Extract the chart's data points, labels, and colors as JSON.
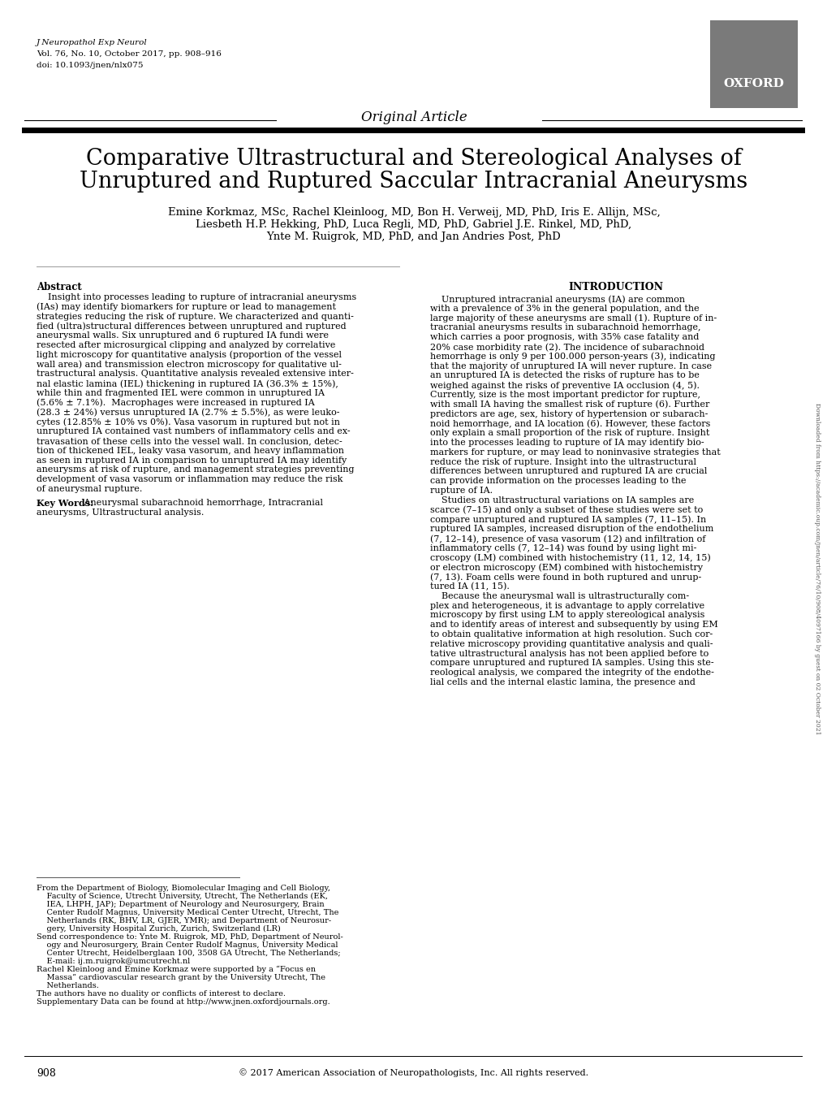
{
  "journal_line1": "J Neuropathol Exp Neurol",
  "journal_line2": "Vol. 76, No. 10, October 2017, pp. 908–916",
  "journal_line3": "doi: 10.1093/jnen/nlx075",
  "oxford_box_color": "#7a7a7a",
  "oxford_text": "OXFORD",
  "section_label": "Original Article",
  "title_line1": "Comparative Ultrastructural and Stereological Analyses of",
  "title_line2": "Unruptured and Ruptured Saccular Intracranial Aneurysms",
  "authors_line1": "Emine Korkmaz, MSc, Rachel Kleinloog, MD, Bon H. Verweij, MD, PhD, Iris E. Allijn, MSc,",
  "authors_line2": "Liesbeth H.P. Hekking, PhD, Luca Regli, MD, PhD, Gabriel J.E. Rinkel, MD, PhD,",
  "authors_line3": "Ynte M. Ruigrok, MD, PhD, and Jan Andries Post, PhD",
  "abstract_title": "Abstract",
  "abstract_lines": [
    "    Insight into processes leading to rupture of intracranial aneurysms",
    "(IAs) may identify biomarkers for rupture or lead to management",
    "strategies reducing the risk of rupture. We characterized and quanti-",
    "fied (ultra)structural differences between unruptured and ruptured",
    "aneurysmal walls. Six unruptured and 6 ruptured IA fundi were",
    "resected after microsurgical clipping and analyzed by correlative",
    "light microscopy for quantitative analysis (proportion of the vessel",
    "wall area) and transmission electron microscopy for qualitative ul-",
    "trastructural analysis. Quantitative analysis revealed extensive inter-",
    "nal elastic lamina (IEL) thickening in ruptured IA (36.3% ± 15%),",
    "while thin and fragmented IEL were common in unruptured IA",
    "(5.6% ± 7.1%).  Macrophages were increased in ruptured IA",
    "(28.3 ± 24%) versus unruptured IA (2.7% ± 5.5%), as were leuko-",
    "cytes (12.85% ± 10% vs 0%). Vasa vasorum in ruptured but not in",
    "unruptured IA contained vast numbers of inflammatory cells and ex-",
    "travasation of these cells into the vessel wall. In conclusion, detec-",
    "tion of thickened IEL, leaky vasa vasorum, and heavy inflammation",
    "as seen in ruptured IA in comparison to unruptured IA may identify",
    "aneurysms at risk of rupture, and management strategies preventing",
    "development of vasa vasorum or inflammation may reduce the risk",
    "of aneurysmal rupture."
  ],
  "keywords_label": "Key Words:",
  "keywords_lines": [
    " Aneurysmal subarachnoid hemorrhage, Intracranial",
    "aneurysms, Ultrastructural analysis."
  ],
  "footnote_lines": [
    "From the Department of Biology, Biomolecular Imaging and Cell Biology,",
    "    Faculty of Science, Utrecht University, Utrecht, The Netherlands (EK,",
    "    IEA, LHPH, JAP); Department of Neurology and Neurosurgery, Brain",
    "    Center Rudolf Magnus, University Medical Center Utrecht, Utrecht, The",
    "    Netherlands (RK, BHV, LR, GJER, YMR); and Department of Neurosur-",
    "    gery, University Hospital Zurich, Zurich, Switzerland (LR)",
    "Send correspondence to: Ynte M. Ruigrok, MD, PhD, Department of Neurol-",
    "    ogy and Neurosurgery, Brain Center Rudolf Magnus, University Medical",
    "    Center Utrecht, Heidelberglaan 100, 3508 GA Utrecht, The Netherlands;",
    "    E-mail: ij.m.ruigrok@umcutrecht.nl",
    "Rachel Kleinloog and Emine Korkmaz were supported by a “Focus en",
    "    Massa” cardiovascular research grant by the University Utrecht, The",
    "    Netherlands.",
    "The authors have no duality or conflicts of interest to declare.",
    "Supplementary Data can be found at http://www.jnen.oxfordjournals.org."
  ],
  "page_number": "908",
  "copyright": "© 2017 American Association of Neuropathologists, Inc. All rights reserved.",
  "intro_title": "INTRODUCTION",
  "intro_lines": [
    "    Unruptured intracranial aneurysms (IA) are common",
    "with a prevalence of 3% in the general population, and the",
    "large majority of these aneurysms are small (1). Rupture of in-",
    "tracranial aneurysms results in subarachnoid hemorrhage,",
    "which carries a poor prognosis, with 35% case fatality and",
    "20% case morbidity rate (2). The incidence of subarachnoid",
    "hemorrhage is only 9 per 100.000 person-years (3), indicating",
    "that the majority of unruptured IA will never rupture. In case",
    "an unruptured IA is detected the risks of rupture has to be",
    "weighed against the risks of preventive IA occlusion (4, 5).",
    "Currently, size is the most important predictor for rupture,",
    "with small IA having the smallest risk of rupture (6). Further",
    "predictors are age, sex, history of hypertension or subarach-",
    "noid hemorrhage, and IA location (6). However, these factors",
    "only explain a small proportion of the risk of rupture. Insight",
    "into the processes leading to rupture of IA may identify bio-",
    "markers for rupture, or may lead to noninvasive strategies that",
    "reduce the risk of rupture. Insight into the ultrastructural",
    "differences between unruptured and ruptured IA are crucial",
    "can provide information on the processes leading to the",
    "rupture of IA.",
    "    Studies on ultrastructural variations on IA samples are",
    "scarce (7–15) and only a subset of these studies were set to",
    "compare unruptured and ruptured IA samples (7, 11–15). In",
    "ruptured IA samples, increased disruption of the endothelium",
    "(7, 12–14), presence of vasa vasorum (12) and infiltration of",
    "inflammatory cells (7, 12–14) was found by using light mi-",
    "croscopy (LM) combined with histochemistry (11, 12, 14, 15)",
    "or electron microscopy (EM) combined with histochemistry",
    "(7, 13). Foam cells were found in both ruptured and unrup-",
    "tured IA (11, 15).",
    "    Because the aneurysmal wall is ultrastructurally com-",
    "plex and heterogeneous, it is advantage to apply correlative",
    "microscopy by first using LM to apply stereological analysis",
    "and to identify areas of interest and subsequently by using EM",
    "to obtain qualitative information at high resolution. Such cor-",
    "relative microscopy providing quantitative analysis and quali-",
    "tative ultrastructural analysis has not been applied before to",
    "compare unruptured and ruptured IA samples. Using this ste-",
    "reological analysis, we compared the integrity of the endothe-",
    "lial cells and the internal elastic lamina, the presence and"
  ],
  "sidebar_text": "Downloaded from https://academic.oup.com/jnen/article/76/10/908/4097166 by guest on 02 October 2021",
  "bg_color": "#ffffff",
  "text_color": "#000000"
}
